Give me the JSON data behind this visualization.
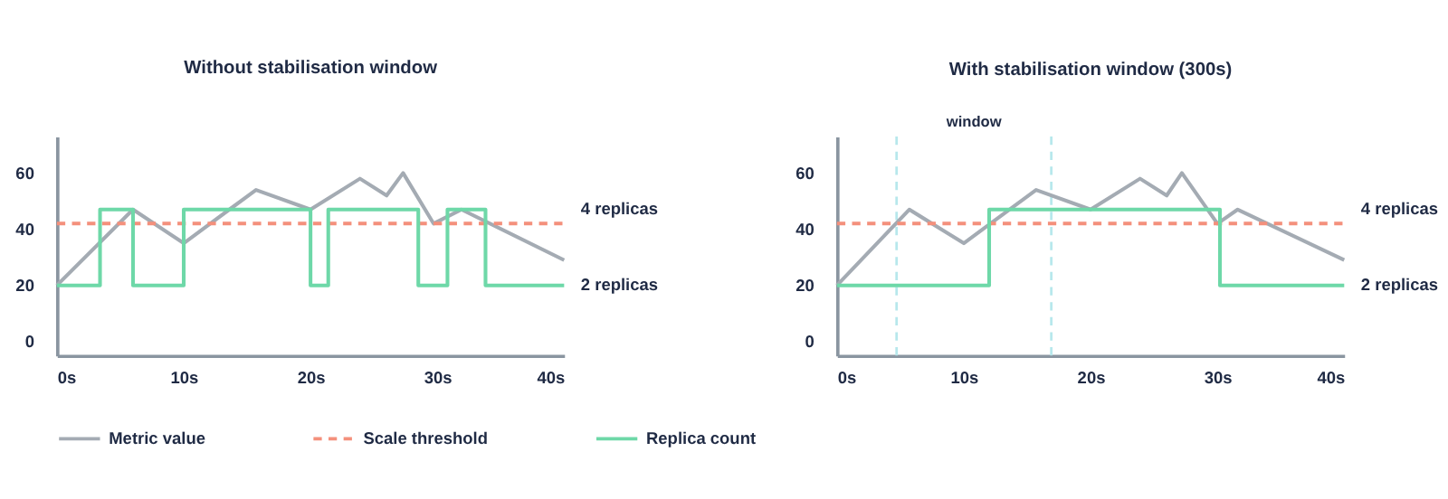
{
  "chart_data": [
    {
      "type": "line",
      "title": "Without stabilisation window",
      "xlim": [
        0,
        40
      ],
      "ylim": [
        -5,
        73
      ],
      "xticks": [
        {
          "value": 0,
          "label": "0s"
        },
        {
          "value": 10,
          "label": "10s"
        },
        {
          "value": 20,
          "label": "20s"
        },
        {
          "value": 30,
          "label": "30s"
        },
        {
          "value": 40,
          "label": "40s"
        }
      ],
      "yticks": [
        0,
        20,
        40,
        60
      ],
      "grid": false,
      "legend": "bottom",
      "series": [
        {
          "name": "Metric value",
          "color": "#a4abb3",
          "line_style": "solid",
          "x": [
            0,
            6,
            10,
            15.7,
            20,
            23.9,
            26,
            27.3,
            29.7,
            31.9,
            40
          ],
          "values": [
            20,
            47,
            35,
            54,
            47,
            58,
            52,
            60,
            42,
            47,
            29
          ]
        },
        {
          "name": "Scale threshold",
          "type": "line",
          "color": "#f4907c",
          "line_style": "dashed",
          "x": [
            0,
            40
          ],
          "values": [
            42,
            42
          ]
        },
        {
          "name": "Replica count",
          "type": "step",
          "color": "#6ed8a8",
          "line_style": "solid",
          "x": [
            0,
            3.4,
            6,
            10,
            20,
            21.4,
            28.5,
            30.8,
            33.8,
            40
          ],
          "values": [
            20,
            47,
            20,
            47,
            20,
            47,
            20,
            47,
            20,
            20
          ]
        }
      ],
      "annotations": [
        "4 replicas",
        {
          "text": "2 replicas",
          "x": 40,
          "y": 20
        }
      ]
    },
    {
      "type": "line",
      "title": "With stabilisation window (300s)",
      "xlim": [
        0,
        40
      ],
      "ylim": [
        -5,
        73
      ],
      "xticks": [
        {
          "value": 0,
          "label": "0s"
        },
        {
          "value": 10,
          "label": "10s"
        },
        {
          "value": 20,
          "label": "20s"
        },
        {
          "value": 30,
          "label": "30s"
        },
        {
          "value": 40,
          "label": "40s"
        }
      ],
      "yticks": [
        0,
        20,
        40,
        60
      ],
      "grid": false,
      "legend": "bottom",
      "series": [
        {
          "name": "Metric value",
          "color": "#a4abb3",
          "line_style": "solid",
          "x": [
            0,
            5.7,
            10,
            15.7,
            20,
            23.9,
            26,
            27.2,
            30,
            31.6,
            40
          ],
          "values": [
            20,
            47,
            35,
            54,
            47,
            58,
            52,
            60,
            42,
            47,
            29
          ]
        },
        {
          "name": "Scale threshold",
          "type": "line",
          "color": "#f4907c",
          "line_style": "dashed",
          "x": [
            0,
            40
          ],
          "values": [
            42,
            42
          ]
        },
        {
          "name": "Replica count",
          "type": "step",
          "color": "#6ed8a8",
          "line_style": "solid",
          "x": [
            0,
            12,
            30.2,
            40
          ],
          "values": [
            20,
            47,
            20,
            20
          ]
        }
      ],
      "ref_lines": [
        {
          "axis": "x",
          "value": 4.7,
          "color": "#b7e8ec",
          "line_style": "dashed"
        },
        {
          "axis": "x",
          "value": 16.9,
          "color": "#b7e8ec",
          "line_style": "dashed"
        }
      ],
      "annotations": [
        "window",
        "4 replicas",
        {
          "text": "2 replicas",
          "x": 40,
          "y": 20
        }
      ]
    }
  ]
}
